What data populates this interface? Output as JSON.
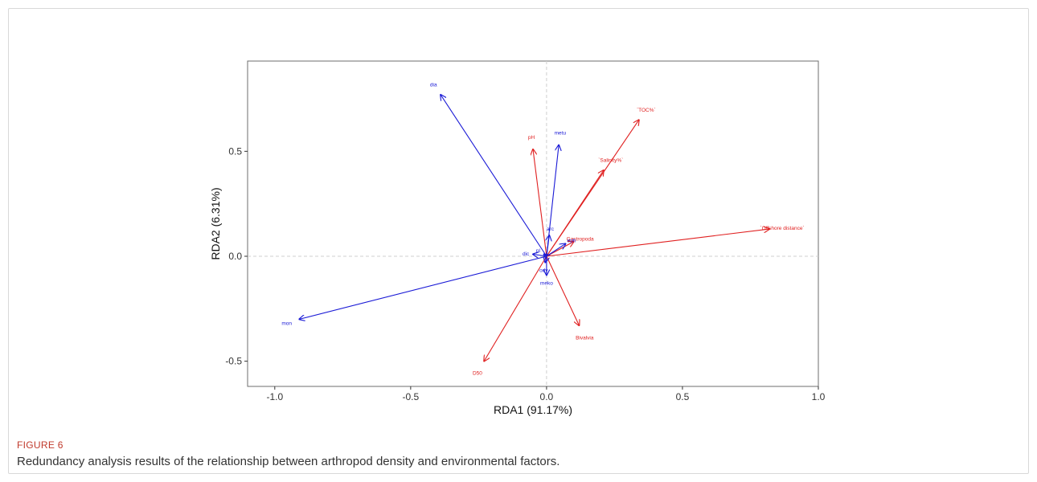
{
  "figure": {
    "label": "FIGURE 6",
    "caption": "Redundancy analysis results of the relationship between arthropod density and environmental factors."
  },
  "chart_data": {
    "type": "biplot",
    "xlabel": "RDA1 (91.17%)",
    "ylabel": "RDA2 (6.31%)",
    "xlim": [
      -1.1,
      1.0
    ],
    "ylim": [
      -0.62,
      0.93
    ],
    "xticks": [
      -1.0,
      -0.5,
      0.0,
      0.5,
      1.0
    ],
    "xtick_labels": [
      "-1.0",
      "-0.5",
      "0.0",
      "0.5",
      "1.0"
    ],
    "yticks": [
      -0.5,
      0.0,
      0.5
    ],
    "ytick_labels": [
      "-0.5",
      "0.0",
      "0.5"
    ],
    "grid": false,
    "zero_lines": true,
    "colors": {
      "environment": "#e02020",
      "species": "#1a1ad6"
    },
    "environment_vectors": [
      {
        "label": "`TOC%`",
        "x": 0.34,
        "y": 0.65
      },
      {
        "label": "`Salinity%`",
        "x": 0.21,
        "y": 0.41
      },
      {
        "label": "pH",
        "x": -0.05,
        "y": 0.51
      },
      {
        "label": "`Offshore distance`",
        "x": 0.82,
        "y": 0.13
      },
      {
        "label": "Bivalvia",
        "x": 0.12,
        "y": -0.33
      },
      {
        "label": "D50",
        "x": -0.23,
        "y": -0.5
      },
      {
        "label": "Gastropoda",
        "x": 0.1,
        "y": 0.07
      }
    ],
    "species_vectors": [
      {
        "label": "dia",
        "x": -0.39,
        "y": 0.77
      },
      {
        "label": "metu",
        "x": 0.045,
        "y": 0.53
      },
      {
        "label": "mon",
        "x": -0.91,
        "y": -0.3
      },
      {
        "label": "arc",
        "x": 0.01,
        "y": 0.1
      },
      {
        "label": "dic",
        "x": -0.05,
        "y": 0.01
      },
      {
        "label": "pl",
        "x": -0.01,
        "y": 0.01
      },
      {
        "label": "eph",
        "x": 0.07,
        "y": 0.06
      },
      {
        "label": "ody",
        "x": -0.005,
        "y": -0.03
      },
      {
        "label": "meko",
        "x": 0.0,
        "y": -0.09
      }
    ]
  }
}
